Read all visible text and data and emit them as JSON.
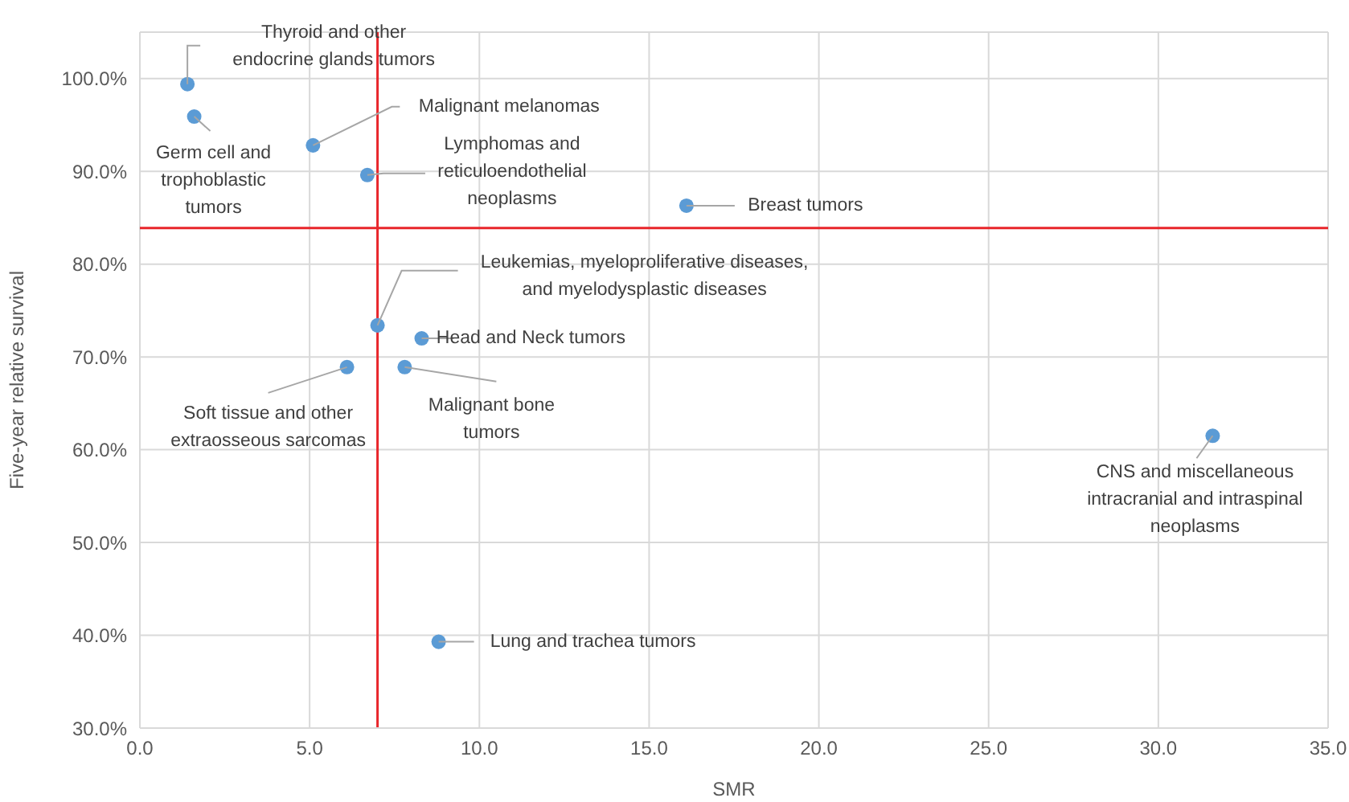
{
  "chart_data": {
    "type": "scatter",
    "xlabel": "SMR",
    "ylabel": "Five-year relative survival",
    "x": [
      1.4,
      1.6,
      5.1,
      6.7,
      7.0,
      8.3,
      6.1,
      7.8,
      8.8,
      16.1,
      31.6
    ],
    "series": [
      {
        "color": "#5b9bd5",
        "values": [
          99.4,
          95.9,
          92.8,
          89.6,
          73.4,
          72.0,
          68.9,
          68.9,
          39.3,
          86.3,
          61.5
        ]
      }
    ],
    "annotations": [
      {
        "text": "Thyroid and other endocrine glands tumors",
        "x": 1.4,
        "y": 99.4
      },
      {
        "text": "Germ cell and trophoblastic tumors",
        "x": 1.6,
        "y": 95.9
      },
      {
        "text": "Malignant melanomas",
        "x": 5.1,
        "y": 92.8
      },
      {
        "text": "Lymphomas and reticuloendothelial neoplasms",
        "x": 6.7,
        "y": 89.6
      },
      {
        "text": "Leukemias, myeloproliferative diseases, and myelodysplastic diseases",
        "x": 7.0,
        "y": 73.4
      },
      {
        "text": "Head and Neck tumors",
        "x": 8.3,
        "y": 72.0
      },
      {
        "text": "Soft tissue and other extraosseous sarcomas",
        "x": 6.1,
        "y": 68.9
      },
      {
        "text": "Malignant bone tumors",
        "x": 7.8,
        "y": 68.9
      },
      {
        "text": "Lung and trachea tumors",
        "x": 8.8,
        "y": 39.3
      },
      {
        "text": "Breast tumors",
        "x": 16.1,
        "y": 86.3
      },
      {
        "text": "CNS and miscellaneous intracranial and intraspinal neoplasms",
        "x": 31.6,
        "y": 61.5
      }
    ],
    "ref_lines": [
      {
        "axis": "x",
        "value": 7.0,
        "color": "#e8262b"
      },
      {
        "axis": "y",
        "value": 83.9,
        "color": "#e8262b"
      }
    ],
    "xlim": [
      0,
      35
    ],
    "xticks": [
      {
        "value": 0,
        "label": "0.0"
      },
      {
        "value": 5,
        "label": "5.0"
      },
      {
        "value": 10,
        "label": "10.0"
      },
      {
        "value": 15,
        "label": "15.0"
      },
      {
        "value": 20,
        "label": "20.0"
      },
      {
        "value": 25,
        "label": "25.0"
      },
      {
        "value": 30,
        "label": "30.0"
      },
      {
        "value": 35,
        "label": "35.0"
      }
    ],
    "ylim": [
      30,
      105
    ],
    "yticks": [
      {
        "value": 30,
        "label": "30.0%"
      },
      {
        "value": 40,
        "label": "40.0%"
      },
      {
        "value": 50,
        "label": "50.0%"
      },
      {
        "value": 60,
        "label": "60.0%"
      },
      {
        "value": 70,
        "label": "70.0%"
      },
      {
        "value": 80,
        "label": "80.0%"
      },
      {
        "value": 90,
        "label": "90.0%"
      },
      {
        "value": 100,
        "label": "100.0%"
      }
    ],
    "grid": true,
    "marker": "circle"
  }
}
